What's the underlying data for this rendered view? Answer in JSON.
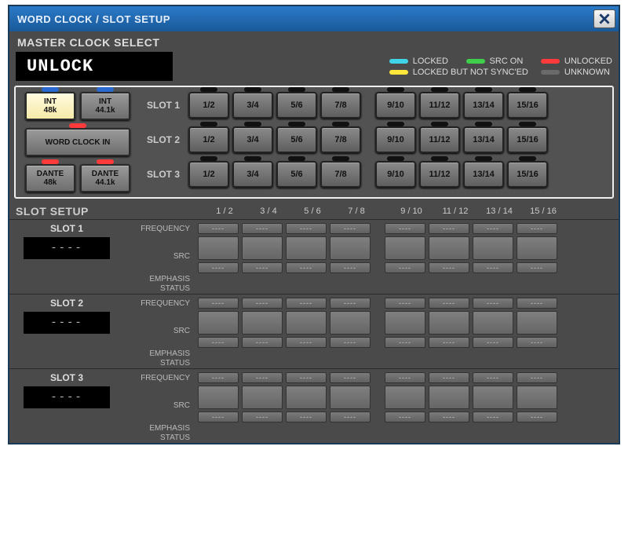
{
  "colors": {
    "title_grad_top": "#2a7ac8",
    "title_grad_bottom": "#1a5a9a",
    "panel_bg": "#4a4a4a",
    "led_locked": "#3fd4e8",
    "led_src_on": "#3fcf4a",
    "led_unlocked": "#ff3a3a",
    "led_locked_nosync": "#ffe63a",
    "led_unknown": "#6a6a6a",
    "led_off": "#111",
    "selected_btn": "#f5e9a8"
  },
  "title": "WORD CLOCK / SLOT SETUP",
  "master_label": "MASTER CLOCK SELECT",
  "unlock_text": "UNLOCK",
  "legend": {
    "locked": "LOCKED",
    "src_on": "SRC ON",
    "unlocked": "UNLOCKED",
    "locked_nosync": "LOCKED BUT NOT SYNC'ED",
    "unknown": "UNKNOWN"
  },
  "sources": {
    "int48": {
      "line1": "INT",
      "line2": "48k",
      "selected": true,
      "led": "blue"
    },
    "int441": {
      "line1": "INT",
      "line2": "44.1k",
      "selected": false,
      "led": "blue"
    },
    "wordclock": {
      "label": "WORD CLOCK IN",
      "led": "red"
    },
    "dante48": {
      "line1": "DANTE",
      "line2": "48k",
      "led": "red"
    },
    "dante441": {
      "line1": "DANTE",
      "line2": "44.1k",
      "led": "red"
    }
  },
  "slot_rows": [
    {
      "label": "SLOT 1",
      "channels": [
        "1/2",
        "3/4",
        "5/6",
        "7/8",
        "9/10",
        "11/12",
        "13/14",
        "15/16"
      ]
    },
    {
      "label": "SLOT 2",
      "channels": [
        "1/2",
        "3/4",
        "5/6",
        "7/8",
        "9/10",
        "11/12",
        "13/14",
        "15/16"
      ]
    },
    {
      "label": "SLOT 3",
      "channels": [
        "1/2",
        "3/4",
        "5/6",
        "7/8",
        "9/10",
        "11/12",
        "13/14",
        "15/16"
      ]
    }
  ],
  "slot_setup_label": "SLOT SETUP",
  "setup_headers": [
    "1 / 2",
    "3 / 4",
    "5 / 6",
    "7 / 8",
    "9 / 10",
    "11 / 12",
    "13 / 14",
    "15 / 16"
  ],
  "params": {
    "freq": "FREQUENCY",
    "src": "SRC",
    "emph": "EMPHASIS\nSTATUS"
  },
  "setup_slots": [
    {
      "name": "SLOT 1",
      "display": "----",
      "freq": [
        "----",
        "----",
        "----",
        "----",
        "----",
        "----",
        "----",
        "----"
      ],
      "emph": [
        "----",
        "----",
        "----",
        "----",
        "----",
        "----",
        "----",
        "----"
      ]
    },
    {
      "name": "SLOT 2",
      "display": "----",
      "freq": [
        "----",
        "----",
        "----",
        "----",
        "----",
        "----",
        "----",
        "----"
      ],
      "emph": [
        "----",
        "----",
        "----",
        "----",
        "----",
        "----",
        "----",
        "----"
      ]
    },
    {
      "name": "SLOT 3",
      "display": "----",
      "freq": [
        "----",
        "----",
        "----",
        "----",
        "----",
        "----",
        "----",
        "----"
      ],
      "emph": [
        "----",
        "----",
        "----",
        "----",
        "----",
        "----",
        "----",
        "----"
      ]
    }
  ]
}
